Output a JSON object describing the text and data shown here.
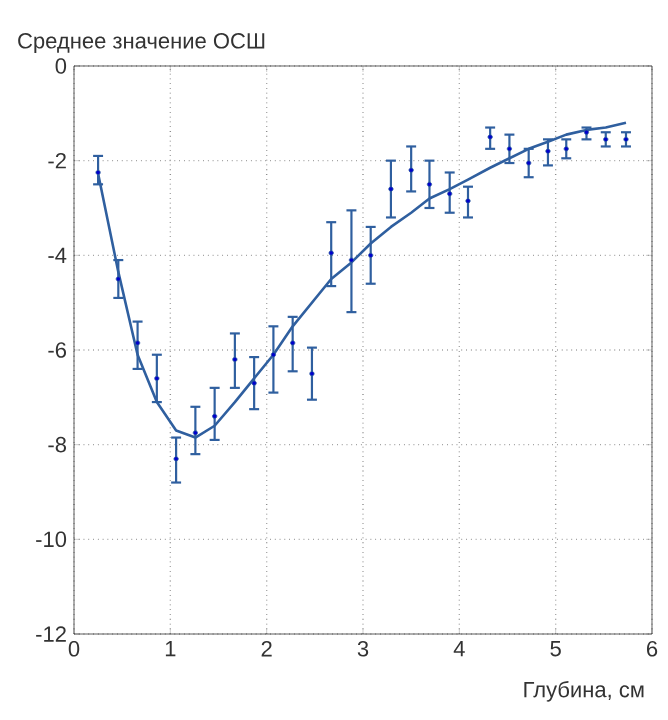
{
  "chart_data": {
    "type": "scatter",
    "ylabel": "Среднее значение ОСШ",
    "xlabel": "Глубина, см",
    "xlim": [
      0,
      6
    ],
    "ylim": [
      -12,
      0
    ],
    "xticks": [
      0,
      1,
      2,
      3,
      4,
      5,
      6
    ],
    "yticks": [
      -12,
      -10,
      -8,
      -6,
      -4,
      -2,
      0
    ],
    "grid": true,
    "series": [
      {
        "color": "#2f5f9f",
        "marker": "circle",
        "x": [
          0.25,
          0.46,
          0.66,
          0.86,
          1.06,
          1.26,
          1.46,
          1.67,
          1.87,
          2.07,
          2.27,
          2.47,
          2.67,
          2.88,
          3.08,
          3.29,
          3.5,
          3.69,
          3.9,
          4.09,
          4.32,
          4.52,
          4.72,
          4.92,
          5.11,
          5.32,
          5.52,
          5.73
        ],
        "values": [
          -2.25,
          -4.5,
          -5.85,
          -6.6,
          -8.3,
          -7.75,
          -7.4,
          -6.2,
          -6.7,
          -6.1,
          -5.85,
          -6.5,
          -3.95,
          -4.1,
          -4.0,
          -2.6,
          -2.2,
          -2.5,
          -2.7,
          -2.85,
          -1.5,
          -1.75,
          -2.05,
          -1.8,
          -1.75,
          -1.4,
          -1.55,
          -1.55
        ],
        "errors": [
          [
            -2.5,
            -1.9
          ],
          [
            -4.9,
            -4.1
          ],
          [
            -6.4,
            -5.4
          ],
          [
            -7.1,
            -6.1
          ],
          [
            -8.8,
            -7.85
          ],
          [
            -8.2,
            -7.2
          ],
          [
            -7.9,
            -6.8
          ],
          [
            -6.8,
            -5.65
          ],
          [
            -7.25,
            -6.15
          ],
          [
            -6.9,
            -5.5
          ],
          [
            -6.45,
            -5.3
          ],
          [
            -7.05,
            -5.95
          ],
          [
            -4.65,
            -3.3
          ],
          [
            -5.2,
            -3.05
          ],
          [
            -4.6,
            -3.4
          ],
          [
            -3.2,
            -2.0
          ],
          [
            -2.65,
            -1.7
          ],
          [
            -3.0,
            -2.0
          ],
          [
            -3.1,
            -2.25
          ],
          [
            -3.2,
            -2.55
          ],
          [
            -1.75,
            -1.3
          ],
          [
            -2.05,
            -1.45
          ],
          [
            -2.35,
            -1.75
          ],
          [
            -2.1,
            -1.55
          ],
          [
            -1.95,
            -1.55
          ],
          [
            -1.55,
            -1.3
          ],
          [
            -1.7,
            -1.4
          ],
          [
            -1.7,
            -1.4
          ]
        ]
      },
      {
        "type": "line",
        "color": "#2f5f9f",
        "marker": "none",
        "line_style": "solid",
        "x": [
          0.25,
          0.46,
          0.66,
          0.86,
          1.06,
          1.26,
          1.46,
          1.67,
          1.87,
          2.07,
          2.27,
          2.47,
          2.67,
          2.88,
          3.08,
          3.29,
          3.5,
          3.69,
          3.9,
          4.09,
          4.32,
          4.52,
          4.72,
          4.92,
          5.11,
          5.32,
          5.52,
          5.73
        ],
        "values": [
          -2.27,
          -4.35,
          -6.1,
          -7.1,
          -7.7,
          -7.85,
          -7.6,
          -7.1,
          -6.6,
          -6.1,
          -5.5,
          -5.0,
          -4.5,
          -4.15,
          -3.75,
          -3.4,
          -3.1,
          -2.8,
          -2.6,
          -2.4,
          -2.15,
          -1.95,
          -1.75,
          -1.6,
          -1.45,
          -1.35,
          -1.3,
          -1.2
        ]
      }
    ]
  }
}
